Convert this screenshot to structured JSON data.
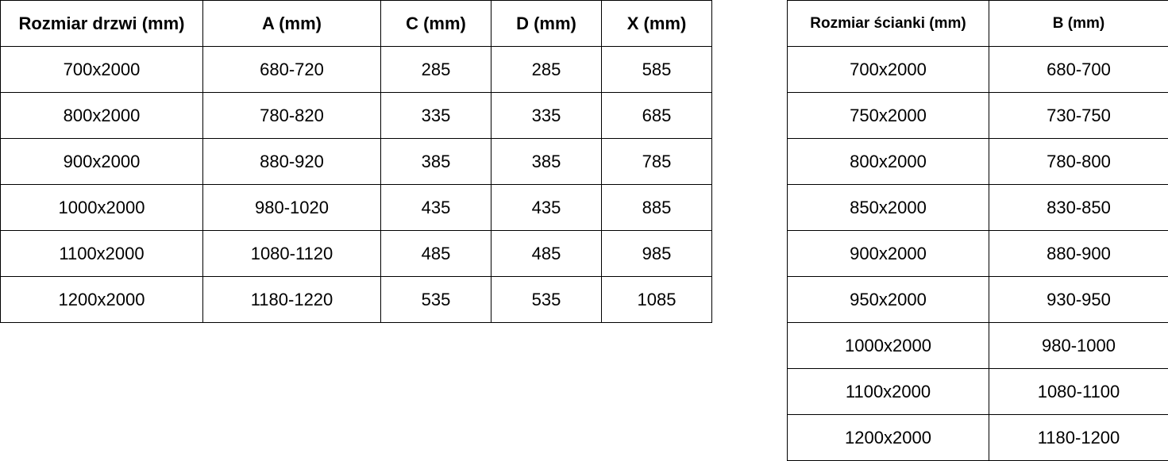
{
  "door_table": {
    "headers": [
      "Rozmiar drzwi (mm)",
      "A (mm)",
      "C (mm)",
      "D (mm)",
      "X (mm)"
    ],
    "rows": [
      [
        "700x2000",
        "680-720",
        "285",
        "285",
        "585"
      ],
      [
        "800x2000",
        "780-820",
        "335",
        "335",
        "685"
      ],
      [
        "900x2000",
        "880-920",
        "385",
        "385",
        "785"
      ],
      [
        "1000x2000",
        "980-1020",
        "435",
        "435",
        "885"
      ],
      [
        "1100x2000",
        "1080-1120",
        "485",
        "485",
        "985"
      ],
      [
        "1200x2000",
        "1180-1220",
        "535",
        "535",
        "1085"
      ]
    ]
  },
  "wall_table": {
    "headers": [
      "Rozmiar ścianki (mm)",
      "B (mm)"
    ],
    "rows": [
      [
        "700x2000",
        "680-700"
      ],
      [
        "750x2000",
        "730-750"
      ],
      [
        "800x2000",
        "780-800"
      ],
      [
        "850x2000",
        "830-850"
      ],
      [
        "900x2000",
        "880-900"
      ],
      [
        "950x2000",
        "930-950"
      ],
      [
        "1000x2000",
        "980-1000"
      ],
      [
        "1100x2000",
        "1080-1100"
      ],
      [
        "1200x2000",
        "1180-1200"
      ]
    ]
  }
}
